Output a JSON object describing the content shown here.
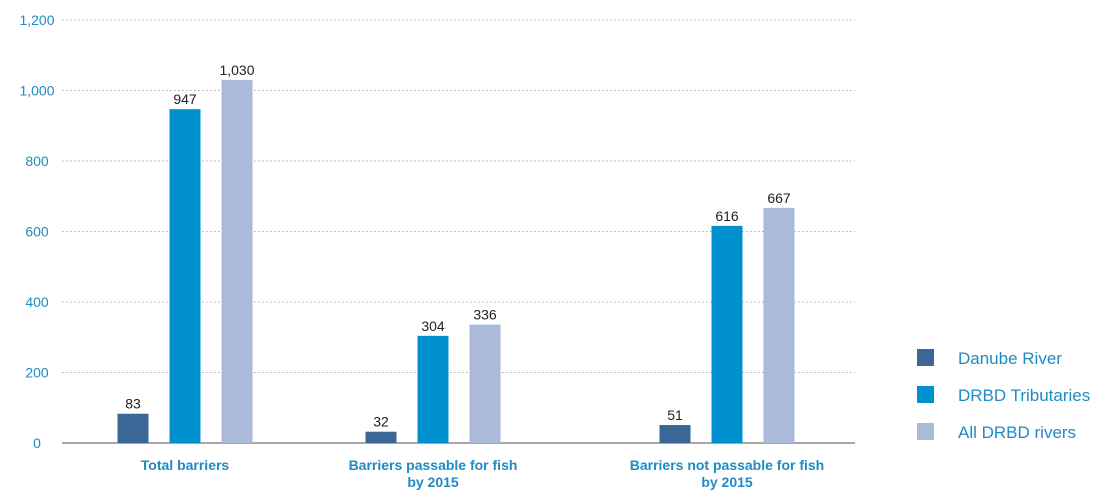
{
  "chart_data": {
    "type": "bar",
    "categories": [
      [
        "Total barriers"
      ],
      [
        "Barriers passable for fish",
        "by 2015"
      ],
      [
        "Barriers not passable for fish",
        "by 2015"
      ]
    ],
    "series": [
      {
        "name": "Danube River",
        "values": [
          83,
          32,
          51
        ],
        "labels": [
          "83",
          "32",
          "51"
        ],
        "color": "#3a6796"
      },
      {
        "name": "DRBD Tributaries",
        "values": [
          947,
          304,
          616
        ],
        "labels": [
          "947",
          "304",
          "616"
        ],
        "color": "#0090d0"
      },
      {
        "name": "All DRBD rivers",
        "values": [
          1030,
          336,
          667
        ],
        "labels": [
          "1,030",
          "336",
          "667"
        ],
        "color": "#abbad8"
      }
    ],
    "yticks": [
      "0",
      "200",
      "400",
      "600",
      "800",
      "1,000",
      "1,200"
    ],
    "ylim": [
      0,
      1200
    ],
    "grid": "dotted horizontal",
    "legend_position": "bottom-right",
    "title": "",
    "xlabel": "",
    "ylabel": ""
  }
}
